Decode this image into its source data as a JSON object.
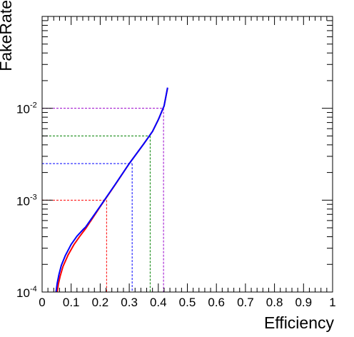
{
  "chart_data": {
    "type": "line",
    "title": "",
    "xlabel": "Efficiency",
    "ylabel": "FakeRate",
    "xlim": [
      0,
      1
    ],
    "ylim": [
      0.0001,
      0.1
    ],
    "yscale": "log",
    "grid": false,
    "legend": "none",
    "xticks": [
      "0",
      "0.1",
      "0.2",
      "0.3",
      "0.4",
      "0.5",
      "0.6",
      "0.7",
      "0.8",
      "0.9",
      "1"
    ],
    "yticks": [
      {
        "value": 0.0001,
        "base": "10",
        "exp": "-4"
      },
      {
        "value": 0.001,
        "base": "10",
        "exp": "-3"
      },
      {
        "value": 0.01,
        "base": "10",
        "exp": "-2"
      }
    ],
    "series": [
      {
        "color": "#ff0000",
        "x": [
          0.052,
          0.056,
          0.062,
          0.072,
          0.09,
          0.11,
          0.13,
          0.15,
          0.2,
          0.25,
          0.3,
          0.35,
          0.38,
          0.4,
          0.42,
          0.432
        ],
        "y": [
          0.0001,
          0.000122,
          0.000148,
          0.00019,
          0.000255,
          0.00033,
          0.000405,
          0.00049,
          0.00085,
          0.00145,
          0.0025,
          0.0041,
          0.0056,
          0.0075,
          0.0106,
          0.0166
        ]
      },
      {
        "color": "#0000ff",
        "x": [
          0.048,
          0.052,
          0.058,
          0.066,
          0.08,
          0.1,
          0.12,
          0.14,
          0.15,
          0.2,
          0.25,
          0.3,
          0.35,
          0.38,
          0.4,
          0.42,
          0.432
        ],
        "y": [
          0.0001,
          0.000125,
          0.000155,
          0.000195,
          0.00025,
          0.00033,
          0.000405,
          0.000475,
          0.00051,
          0.00086,
          0.00146,
          0.0025,
          0.0041,
          0.0056,
          0.0075,
          0.0106,
          0.0168
        ]
      }
    ],
    "reference_lines": [
      {
        "color": "#ff0000",
        "efficiency": 0.222,
        "fakerate": 0.001
      },
      {
        "color": "#0000ff",
        "efficiency": 0.31,
        "fakerate": 0.0025
      },
      {
        "color": "#008000",
        "efficiency": 0.372,
        "fakerate": 0.005
      },
      {
        "color": "#9900cc",
        "efficiency": 0.418,
        "fakerate": 0.01
      }
    ]
  }
}
